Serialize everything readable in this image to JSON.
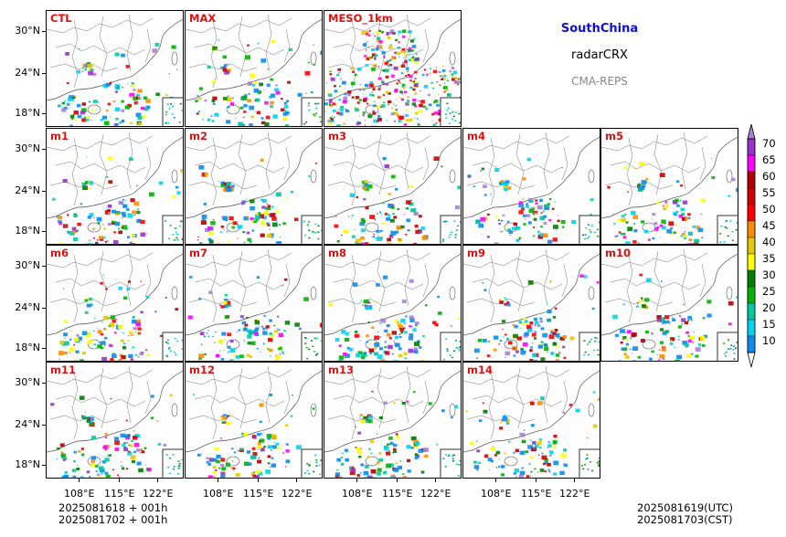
{
  "header": {
    "region": "SouthChina",
    "variable": "radarCRX",
    "system": "CMA-REPS"
  },
  "panels": [
    "CTL",
    "MAX",
    "MESO_1km",
    "m1",
    "m2",
    "m3",
    "m4",
    "m5",
    "m6",
    "m7",
    "m8",
    "m9",
    "m10",
    "m11",
    "m12",
    "m13",
    "m14"
  ],
  "lat_labels": [
    "30°N",
    "24°N",
    "18°N"
  ],
  "lon_labels": [
    "108°E",
    "115°E",
    "122°E"
  ],
  "time_left": {
    "line1": "2025081618  +  001h",
    "line2": "2025081702  +  001h"
  },
  "time_right": {
    "line1": "2025081619(UTC)",
    "line2": "2025081703(CST)"
  },
  "colorbar": {
    "levels": [
      "10",
      "15",
      "20",
      "25",
      "30",
      "35",
      "40",
      "45",
      "50",
      "55",
      "60",
      "65",
      "70"
    ],
    "colors": [
      "#0a8cf0",
      "#00d2f0",
      "#00c8a0",
      "#00b400",
      "#008000",
      "#ffff00",
      "#e6c800",
      "#ff8c00",
      "#ff0000",
      "#d20000",
      "#b40000",
      "#ff00ff",
      "#9932cc",
      "#a880d8"
    ],
    "under_color": "#ffffff",
    "over_color": "#a880d8"
  }
}
